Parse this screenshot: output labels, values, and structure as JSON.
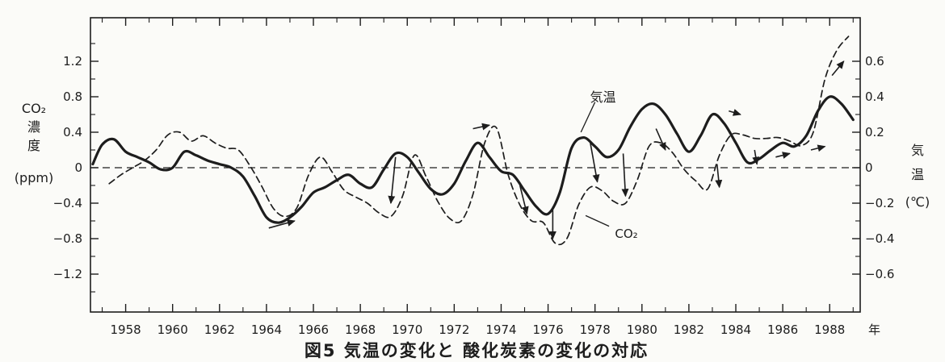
{
  "caption": "図5 気温の変化と 酸化炭素の変化の対応",
  "chart_data": {
    "type": "line",
    "title": "",
    "x_unit_label": "年",
    "x_range": [
      1956.5,
      1989.3
    ],
    "x_ticks": [
      1958,
      1960,
      1962,
      1964,
      1966,
      1968,
      1970,
      1972,
      1974,
      1976,
      1978,
      1980,
      1982,
      1984,
      1986,
      1988
    ],
    "left_axis": {
      "label_lines": [
        "CO₂",
        "濃",
        "度",
        "(ppm)"
      ],
      "range": [
        -1.6,
        1.6
      ],
      "ticks": [
        1.2,
        0.8,
        0.4,
        0,
        -0.4,
        -0.8,
        -1.2
      ],
      "tick_labels": [
        "1.2",
        "0.8",
        "0.4",
        "0",
        "−0.4",
        "−0.8",
        "−1.2"
      ]
    },
    "right_axis": {
      "label_lines": [
        "気",
        "温",
        "(℃)"
      ],
      "range": [
        -0.7,
        0.7
      ],
      "ticks": [
        0.6,
        0.4,
        0.2,
        0,
        -0.2,
        -0.4,
        -0.6
      ],
      "tick_labels": [
        "0.6",
        "0.4",
        "0.2",
        "0",
        "−0.2",
        "−0.4",
        "−0.6"
      ]
    },
    "series": [
      {
        "name": "気温",
        "axis": "right",
        "style": "solid",
        "x": [
          1956.6,
          1957.0,
          1957.5,
          1958.0,
          1958.5,
          1959.0,
          1959.5,
          1960.0,
          1960.5,
          1961.0,
          1961.5,
          1962.0,
          1962.5,
          1963.0,
          1963.5,
          1964.0,
          1964.5,
          1965.0,
          1965.5,
          1966.0,
          1966.5,
          1967.0,
          1967.5,
          1968.0,
          1968.5,
          1969.0,
          1969.5,
          1970.0,
          1970.5,
          1971.0,
          1971.5,
          1972.0,
          1972.5,
          1973.0,
          1973.5,
          1974.0,
          1974.5,
          1975.0,
          1975.5,
          1976.0,
          1976.5,
          1977.0,
          1977.5,
          1978.0,
          1978.5,
          1979.0,
          1979.5,
          1980.0,
          1980.5,
          1981.0,
          1981.5,
          1982.0,
          1982.5,
          1983.0,
          1983.5,
          1984.0,
          1984.5,
          1985.0,
          1985.5,
          1986.0,
          1986.5,
          1987.0,
          1987.5,
          1988.0,
          1988.5,
          1989.0
        ],
        "y": [
          0.02,
          0.13,
          0.16,
          0.09,
          0.06,
          0.03,
          -0.01,
          0.0,
          0.09,
          0.07,
          0.04,
          0.02,
          0.0,
          -0.05,
          -0.16,
          -0.28,
          -0.31,
          -0.28,
          -0.22,
          -0.14,
          -0.11,
          -0.07,
          -0.04,
          -0.09,
          -0.11,
          -0.01,
          0.08,
          0.06,
          -0.03,
          -0.12,
          -0.15,
          -0.09,
          0.04,
          0.14,
          0.06,
          -0.02,
          -0.04,
          -0.13,
          -0.22,
          -0.26,
          -0.14,
          0.11,
          0.17,
          0.12,
          0.06,
          0.1,
          0.23,
          0.33,
          0.36,
          0.3,
          0.19,
          0.09,
          0.18,
          0.3,
          0.25,
          0.14,
          0.03,
          0.05,
          0.1,
          0.14,
          0.12,
          0.18,
          0.32,
          0.4,
          0.36,
          0.27
        ]
      },
      {
        "name": "CO₂",
        "axis": "left",
        "style": "dashed",
        "x": [
          1957.3,
          1957.8,
          1958.3,
          1958.8,
          1959.3,
          1959.8,
          1960.3,
          1960.8,
          1961.3,
          1961.8,
          1962.3,
          1962.8,
          1963.3,
          1963.8,
          1964.3,
          1964.8,
          1965.3,
          1965.8,
          1966.3,
          1966.8,
          1967.3,
          1967.8,
          1968.3,
          1968.8,
          1969.3,
          1969.8,
          1970.3,
          1970.8,
          1971.3,
          1971.8,
          1972.3,
          1972.8,
          1973.3,
          1973.8,
          1974.3,
          1974.8,
          1975.3,
          1975.8,
          1976.3,
          1976.8,
          1977.3,
          1977.8,
          1978.3,
          1978.8,
          1979.3,
          1979.8,
          1980.3,
          1980.8,
          1981.3,
          1981.8,
          1982.3,
          1982.8,
          1983.3,
          1983.8,
          1984.3,
          1984.8,
          1985.3,
          1985.8,
          1986.3,
          1986.8,
          1987.3,
          1987.8,
          1988.3,
          1988.8
        ],
        "y": [
          -0.18,
          -0.08,
          0.0,
          0.08,
          0.2,
          0.37,
          0.4,
          0.3,
          0.36,
          0.28,
          0.22,
          0.2,
          0.02,
          -0.21,
          -0.46,
          -0.55,
          -0.45,
          -0.08,
          0.12,
          -0.05,
          -0.25,
          -0.33,
          -0.4,
          -0.51,
          -0.55,
          -0.32,
          0.14,
          -0.1,
          -0.38,
          -0.57,
          -0.6,
          -0.3,
          0.28,
          0.45,
          -0.08,
          -0.42,
          -0.6,
          -0.62,
          -0.85,
          -0.8,
          -0.42,
          -0.22,
          -0.26,
          -0.38,
          -0.4,
          -0.14,
          0.24,
          0.28,
          0.17,
          -0.02,
          -0.15,
          -0.24,
          0.14,
          0.37,
          0.37,
          0.33,
          0.33,
          0.34,
          0.3,
          0.25,
          0.4,
          1.0,
          1.32,
          1.48
        ]
      }
    ],
    "annotations": [
      {
        "text": "気温",
        "x": 1978.2,
        "y_right": 0.4
      },
      {
        "text": "CO₂",
        "x": 1979.2,
        "y_right": -0.36
      }
    ],
    "arrows": [
      {
        "from": [
          1964.1,
          -0.34
        ],
        "to": [
          1965.2,
          -0.3
        ]
      },
      {
        "from": [
          1969.5,
          0.06
        ],
        "to": [
          1969.3,
          -0.2
        ]
      },
      {
        "from": [
          1972.8,
          0.22
        ],
        "to": [
          1973.5,
          0.24
        ]
      },
      {
        "from": [
          1974.8,
          -0.1
        ],
        "to": [
          1975.1,
          -0.26
        ]
      },
      {
        "from": [
          1976.2,
          -0.22
        ],
        "to": [
          1976.2,
          -0.4
        ]
      },
      {
        "from": [
          1977.8,
          0.14
        ],
        "to": [
          1978.1,
          -0.08
        ]
      },
      {
        "from": [
          1979.2,
          0.08
        ],
        "to": [
          1979.3,
          -0.16
        ]
      },
      {
        "from": [
          1980.6,
          0.22
        ],
        "to": [
          1981.0,
          0.1
        ]
      },
      {
        "from": [
          1983.2,
          0.02
        ],
        "to": [
          1983.3,
          -0.11
        ]
      },
      {
        "from": [
          1983.7,
          0.32
        ],
        "to": [
          1984.2,
          0.3
        ]
      },
      {
        "from": [
          1984.8,
          0.1
        ],
        "to": [
          1984.9,
          0.02
        ]
      },
      {
        "from": [
          1985.7,
          0.06
        ],
        "to": [
          1986.3,
          0.08
        ]
      },
      {
        "from": [
          1987.2,
          0.1
        ],
        "to": [
          1987.8,
          0.12
        ]
      },
      {
        "from": [
          1988.1,
          0.52
        ],
        "to": [
          1988.6,
          0.6
        ]
      }
    ]
  }
}
